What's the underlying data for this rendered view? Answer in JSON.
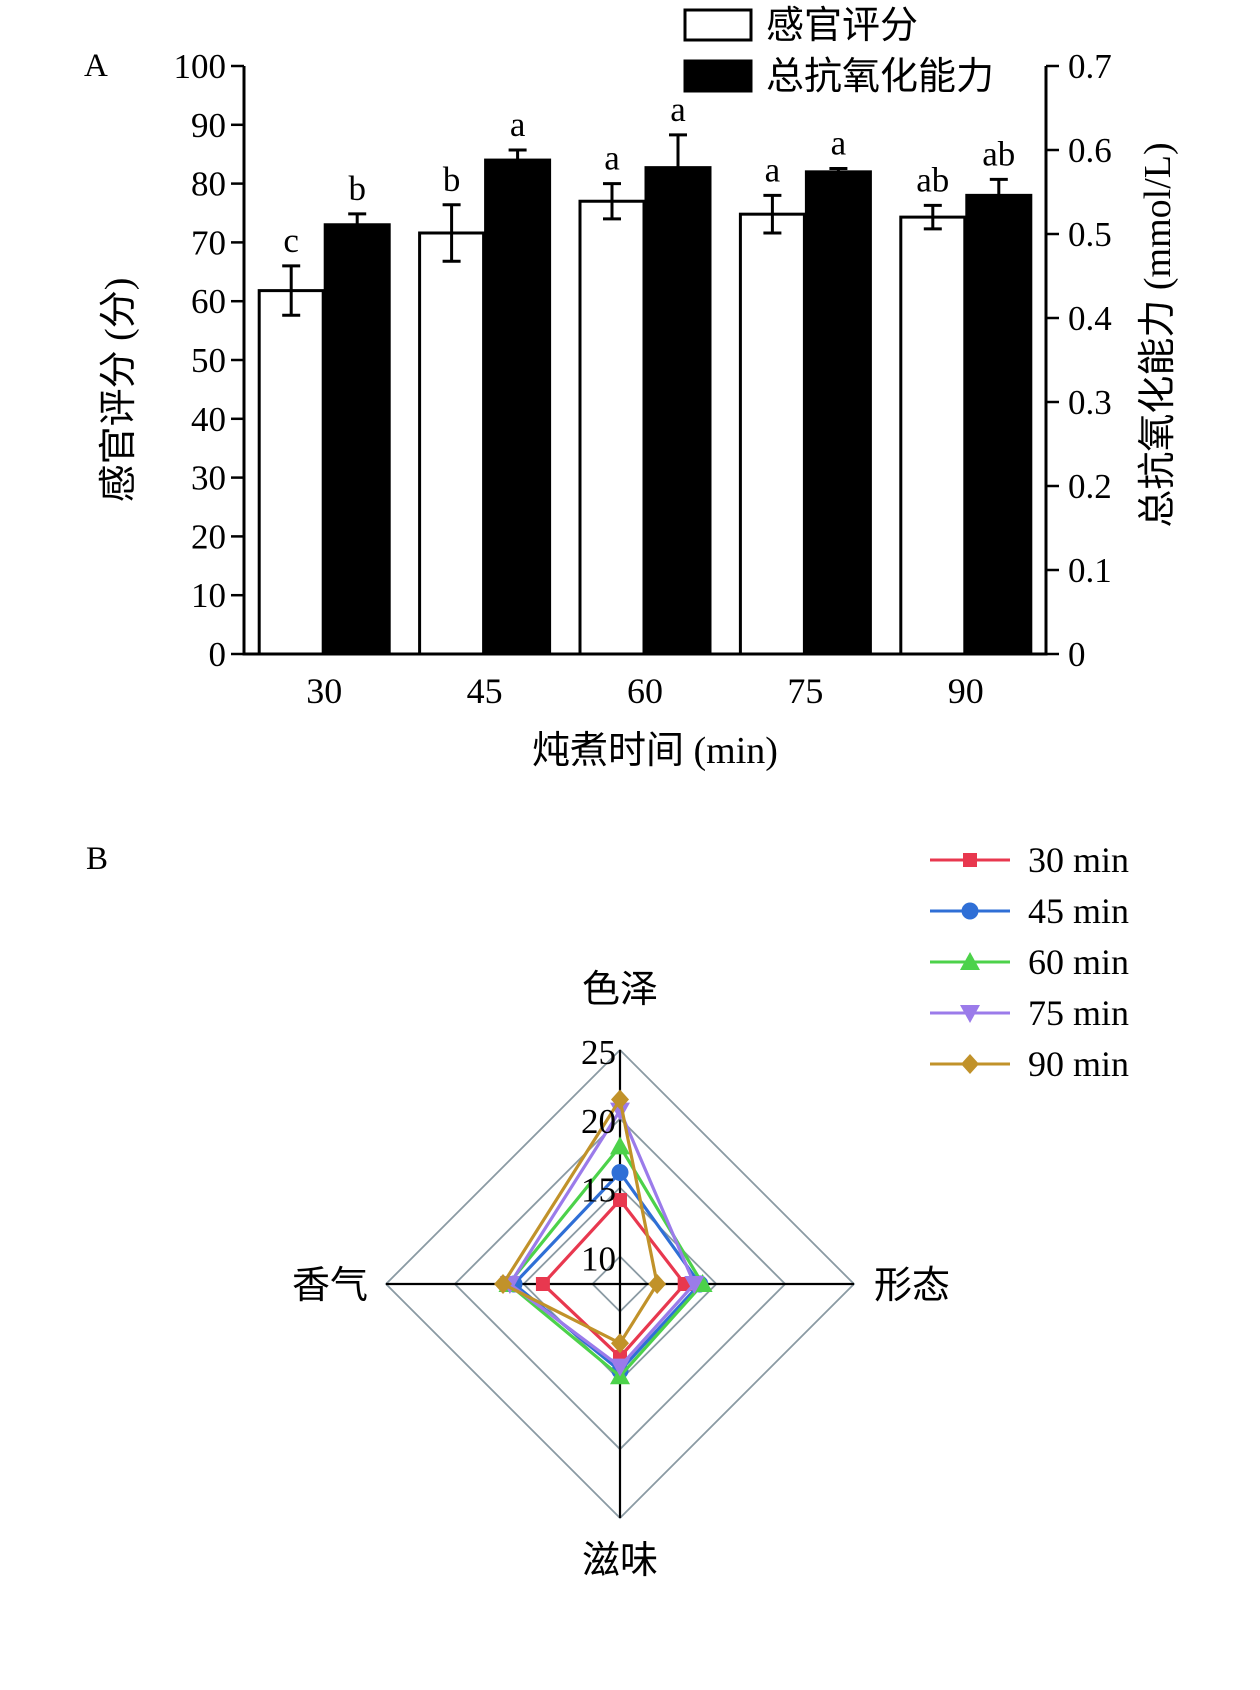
{
  "chart_data": [
    {
      "panel": "A",
      "type": "bar",
      "categories": [
        "30",
        "45",
        "60",
        "75",
        "90"
      ],
      "xlabel": "炖煮时间 (min)",
      "series": [
        {
          "name": "感官评分",
          "axis": "left",
          "fill": "#ffffff",
          "values": [
            61.8,
            71.6,
            77.0,
            74.8,
            74.3
          ],
          "errors": [
            4.2,
            4.8,
            3.0,
            3.2,
            2.0
          ],
          "letters": [
            "c",
            "b",
            "a",
            "a",
            "ab"
          ]
        },
        {
          "name": "总抗氧化能力",
          "axis": "right",
          "fill": "#000000",
          "values": [
            0.511,
            0.588,
            0.579,
            0.574,
            0.546
          ],
          "errors": [
            0.013,
            0.012,
            0.039,
            0.004,
            0.019
          ],
          "letters": [
            "b",
            "a",
            "a",
            "a",
            "ab"
          ]
        }
      ],
      "left_axis": {
        "label": "感官评分 (分)",
        "range": [
          0,
          100
        ],
        "ticks": [
          "0",
          "10",
          "20",
          "30",
          "40",
          "50",
          "60",
          "70",
          "80",
          "90",
          "100"
        ]
      },
      "right_axis": {
        "label": "总抗氧化能力 (mmol/L)",
        "range": [
          0,
          0.7
        ],
        "ticks": [
          "0",
          "0.1",
          "0.2",
          "0.3",
          "0.4",
          "0.5",
          "0.6",
          "0.7"
        ]
      },
      "legend": "top-right"
    },
    {
      "panel": "B",
      "type": "radar",
      "axes": [
        "色泽",
        "形态",
        "滋味",
        "香气"
      ],
      "range": [
        8,
        25
      ],
      "ring_labels": [
        "10",
        "15",
        "20",
        "25"
      ],
      "series": [
        {
          "name": "30 min",
          "color": "#e8384f",
          "marker": "square",
          "values": [
            14.1,
            12.7,
            13.3,
            13.6
          ]
        },
        {
          "name": "45 min",
          "color": "#2f6fd6",
          "marker": "circle",
          "values": [
            16.1,
            13.8,
            14.3,
            15.7
          ]
        },
        {
          "name": "60 min",
          "color": "#4cd24a",
          "marker": "triangle-up",
          "values": [
            18.0,
            14.0,
            14.7,
            16.1
          ]
        },
        {
          "name": "75 min",
          "color": "#9b7bea",
          "marker": "triangle-down",
          "values": [
            20.6,
            13.4,
            14.0,
            16.0
          ]
        },
        {
          "name": "90 min",
          "color": "#c1922a",
          "marker": "diamond",
          "values": [
            21.4,
            10.7,
            12.3,
            16.5
          ]
        }
      ],
      "legend": "top-right"
    }
  ]
}
